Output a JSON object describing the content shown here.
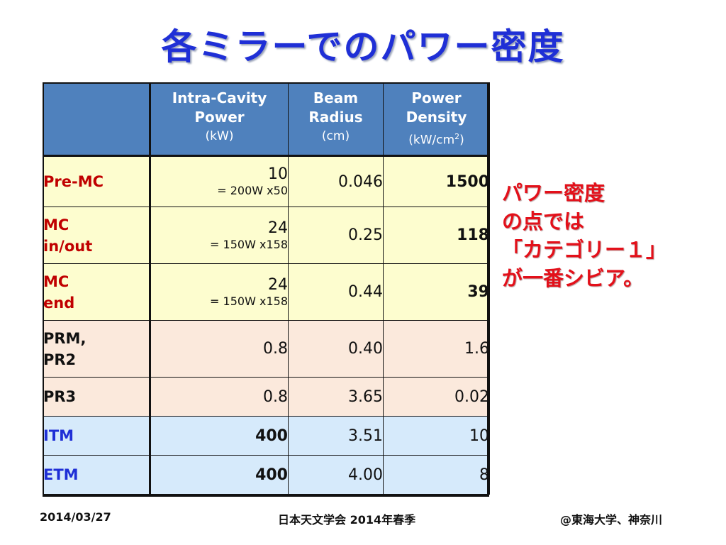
{
  "title": "各ミラーでのパワー密度",
  "table": {
    "headers": [
      {
        "lines": [],
        "unit": ""
      },
      {
        "lines": [
          "Intra-Cavity",
          "Power"
        ],
        "unit": "(kW)"
      },
      {
        "lines": [
          "Beam",
          "Radius"
        ],
        "unit": "(cm)"
      },
      {
        "lines": [
          "Power",
          "Density"
        ],
        "unit": "(kW/cm",
        "unit_sup": "2",
        "unit_end": ")"
      }
    ],
    "rows": [
      {
        "label": [
          "Pre-MC"
        ],
        "power": "10",
        "power_note": "= 200W x50",
        "radius": "0.046",
        "density": "1500"
      },
      {
        "label": [
          "MC",
          "in/out"
        ],
        "power": "24",
        "power_note": "= 150W x158",
        "radius": "0.25",
        "density": "118"
      },
      {
        "label": [
          "MC",
          "end"
        ],
        "power": "24",
        "power_note": "= 150W x158",
        "radius": "0.44",
        "density": "39"
      },
      {
        "label": [
          "PRM,",
          "PR2"
        ],
        "power": "0.8",
        "power_note": "",
        "radius": "0.40",
        "density": "1.6"
      },
      {
        "label": [
          "PR3"
        ],
        "power": "0.8",
        "power_note": "",
        "radius": "3.65",
        "density": "0.02"
      },
      {
        "label": [
          "ITM"
        ],
        "power": "400",
        "power_note": "",
        "radius": "3.51",
        "density": "10"
      },
      {
        "label": [
          "ETM"
        ],
        "power": "400",
        "power_note": "",
        "radius": "4.00",
        "density": "8"
      }
    ]
  },
  "note": [
    "パワー密度",
    "の点では",
    "「カテゴリー１」",
    "が一番シビア。"
  ],
  "footer": {
    "date": "2014/03/27",
    "meeting": "日本天文学会 2014年春季",
    "venue": "@東海大学、神奈川"
  },
  "colors": {
    "title": "#1f2fd6",
    "header_bg": "#4f81bd",
    "yellow_row": "#fdfdcf",
    "peach_row": "#fbe9dc",
    "blue_row": "#d6eafb",
    "highlight_red": "#c00000",
    "note_red": "#e3101a"
  }
}
